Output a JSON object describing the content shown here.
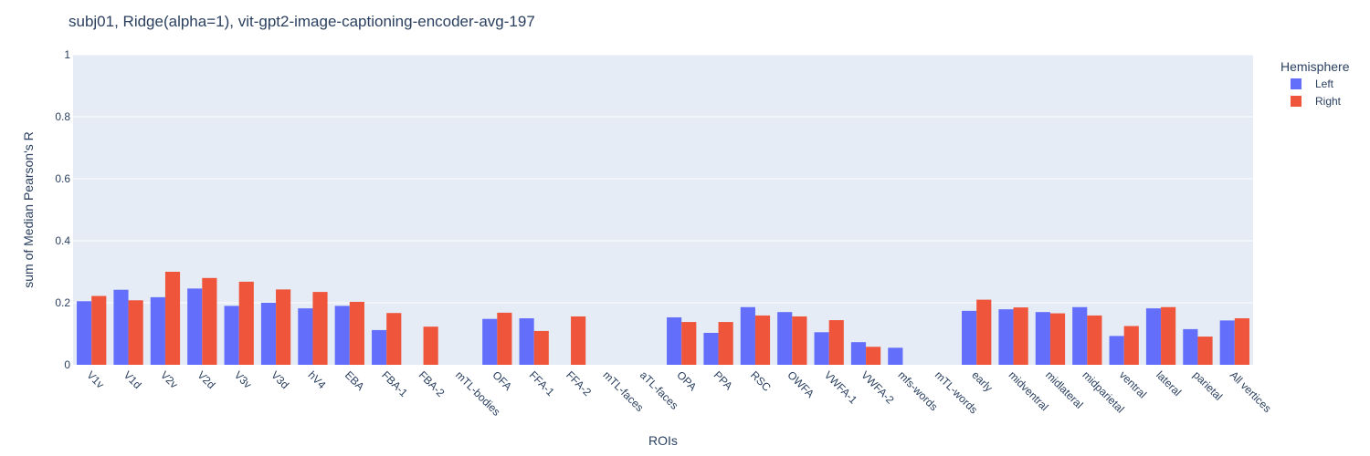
{
  "chart_data": {
    "type": "bar",
    "title": "subj01, Ridge(alpha=1), vit-gpt2-image-captioning-encoder-avg-197",
    "xlabel": "ROIs",
    "ylabel": "sum of Median Pearson's R",
    "ylim": [
      0,
      1
    ],
    "yticks": [
      "0",
      "0.2",
      "0.4",
      "0.6",
      "0.8",
      "1"
    ],
    "grid": true,
    "legend": {
      "title": "Hemisphere",
      "position": "top-right"
    },
    "categories": [
      "V1v",
      "V1d",
      "V2v",
      "V2d",
      "V3v",
      "V3d",
      "hV4",
      "EBA",
      "FBA-1",
      "FBA-2",
      "mTL-bodies",
      "OFA",
      "FFA-1",
      "FFA-2",
      "mTL-faces",
      "aTL-faces",
      "OPA",
      "PPA",
      "RSC",
      "OWFA",
      "VWFA-1",
      "VWFA-2",
      "mfs-words",
      "mTL-words",
      "early",
      "midventral",
      "midlateral",
      "midparietal",
      "ventral",
      "lateral",
      "parietal",
      "All vertices"
    ],
    "series": [
      {
        "name": "Left",
        "color": "#636efa",
        "values": [
          0.205,
          0.242,
          0.218,
          0.246,
          0.19,
          0.2,
          0.182,
          0.19,
          0.112,
          null,
          null,
          0.148,
          0.15,
          null,
          null,
          null,
          0.153,
          0.103,
          0.186,
          0.17,
          0.105,
          0.073,
          0.055,
          null,
          0.174,
          0.179,
          0.17,
          0.186,
          0.093,
          0.182,
          0.115,
          0.143
        ]
      },
      {
        "name": "Right",
        "color": "#ef553b",
        "values": [
          0.222,
          0.208,
          0.3,
          0.28,
          0.268,
          0.243,
          0.235,
          0.203,
          0.167,
          0.123,
          null,
          0.168,
          0.109,
          0.156,
          null,
          null,
          0.138,
          0.138,
          0.159,
          0.156,
          0.144,
          0.058,
          null,
          null,
          0.21,
          0.185,
          0.166,
          0.159,
          0.125,
          0.186,
          0.091,
          0.15
        ]
      }
    ]
  }
}
